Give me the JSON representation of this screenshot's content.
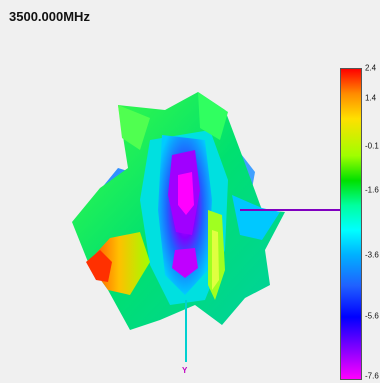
{
  "header": {
    "frequency": "3500.000MHz"
  },
  "axis": {
    "y_label": "Y"
  },
  "colorbar": {
    "ticks": [
      "2.4",
      "1.4",
      "-0.1",
      "-1.6",
      "-3.6",
      "-5.6",
      "-7.6"
    ],
    "max": "2.4",
    "min": "-7.6"
  },
  "colors": {
    "x_axis": "#8000c0",
    "y_axis": "#00d0d0"
  }
}
